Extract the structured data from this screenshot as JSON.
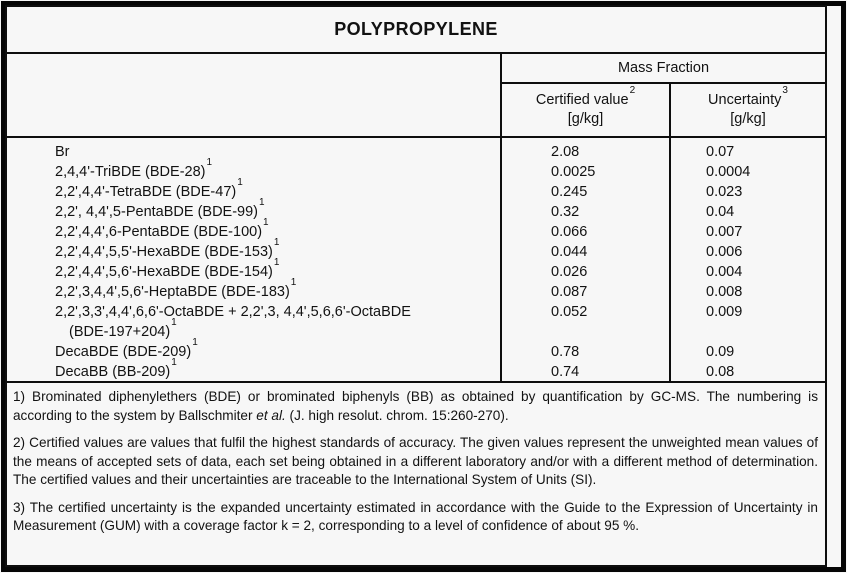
{
  "title": "POLYPROPYLENE",
  "table": {
    "group_header": "Mass Fraction",
    "columns": [
      {
        "label": "Certified value",
        "sup": "2",
        "unit": "[g/kg]"
      },
      {
        "label": "Uncertainty",
        "sup": "3",
        "unit": "[g/kg]"
      }
    ],
    "rows": [
      {
        "name": "Br",
        "sup": "",
        "certified": "2.08",
        "uncertainty": "0.07"
      },
      {
        "name": "2,4,4'-TriBDE (BDE-28)",
        "sup": "1",
        "certified": "0.0025",
        "uncertainty": "0.0004"
      },
      {
        "name": "2,2',4,4'-TetraBDE (BDE-47)",
        "sup": "1",
        "certified": "0.245",
        "uncertainty": "0.023"
      },
      {
        "name": "2,2', 4,4',5-PentaBDE (BDE-99)",
        "sup": "1",
        "certified": "0.32",
        "uncertainty": "0.04"
      },
      {
        "name": "2,2',4,4',6-PentaBDE (BDE-100)",
        "sup": "1",
        "certified": "0.066",
        "uncertainty": "0.007"
      },
      {
        "name": "2,2',4,4',5,5'-HexaBDE (BDE-153)",
        "sup": "1",
        "certified": "0.044",
        "uncertainty": "0.006"
      },
      {
        "name": "2,2',4,4',5,6'-HexaBDE (BDE-154)",
        "sup": "1",
        "certified": "0.026",
        "uncertainty": "0.004"
      },
      {
        "name": "2,2',3,4,4',5,6'-HeptaBDE (BDE-183)",
        "sup": "1",
        "certified": "0.087",
        "uncertainty": "0.008"
      },
      {
        "name": "2,2',3,3',4,4',6,6'-OctaBDE + 2,2',3, 4,4',5,6,6'-OctaBDE",
        "sup": "",
        "line2": "(BDE-197+204)",
        "line2_sup": "1",
        "certified": "0.052",
        "uncertainty": "0.009"
      },
      {
        "name": "DecaBDE (BDE-209)",
        "sup": "1",
        "certified": "0.78",
        "uncertainty": "0.09"
      },
      {
        "name": "DecaBB (BB-209)",
        "sup": "1",
        "certified": "0.74",
        "uncertainty": "0.08"
      }
    ]
  },
  "footnotes": {
    "fn1": {
      "before_italic": "1) Brominated diphenylethers (BDE) or brominated biphenyls (BB) as obtained by quantification by GC-MS. The numbering is according to the system by Ballschmiter ",
      "italic": "et al.",
      "after_italic": " (J. high resolut. chrom. 15:260-270)."
    },
    "fn2": "2) Certified values are values that fulfil the highest standards of accuracy. The given values represent the unweighted mean values of the means of accepted sets of data, each set being obtained in a different laboratory and/or with a different method of determination. The certified values and their uncertainties are traceable to the International System of Units (SI).",
    "fn3": "3) The certified uncertainty is the expanded uncertainty estimated in accordance with the Guide to the Expression of Uncertainty in Measurement (GUM) with a coverage factor k = 2, corresponding to a level of confidence of about 95 %."
  },
  "colors": {
    "background": "#f7f7f7",
    "border": "#0e0e0e",
    "text": "#121212"
  }
}
